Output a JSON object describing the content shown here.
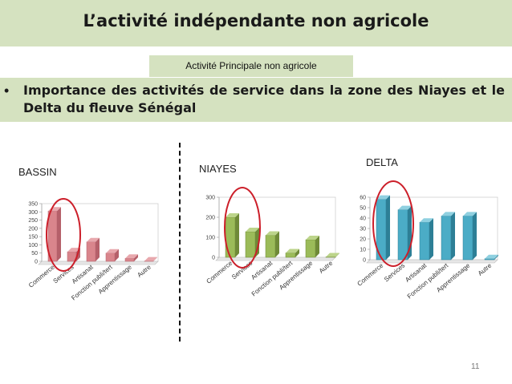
{
  "slide": {
    "title": "L’activité indépendante non agricole",
    "subtitle": "Activité  Principale non agricole",
    "bullet": "Importance des activités de service dans la zone des Niayes et le Delta du fleuve Sénégal",
    "page_number": "11"
  },
  "chart_data": [
    {
      "type": "bar",
      "region": "BASSIN",
      "categories": [
        "Commerce",
        "Services",
        "Artisanat",
        "Fonction publi/tert",
        "Apprentissage",
        "Autre"
      ],
      "values": [
        305,
        58,
        118,
        50,
        18,
        2
      ],
      "yticks": [
        0,
        50,
        100,
        150,
        200,
        250,
        300,
        350
      ],
      "ylim": [
        0,
        350
      ],
      "color": "#d9858c",
      "color_dark": "#b5606a",
      "color_top": "#e8a8ad",
      "highlight": "Commerce and Services circled in red"
    },
    {
      "type": "bar",
      "region": "NIAYES",
      "categories": [
        "Commerce",
        "Services",
        "Artisanat",
        "Fonction publi/tert",
        "Apprentissage",
        "Autre"
      ],
      "values": [
        200,
        128,
        110,
        22,
        88,
        2
      ],
      "yticks": [
        0,
        100,
        200,
        300
      ],
      "ylim": [
        0,
        300
      ],
      "color": "#9bbb59",
      "color_dark": "#6f8a38",
      "color_top": "#bcd48a",
      "highlight": "Commerce and Services circled in red"
    },
    {
      "type": "bar",
      "region": "DELTA",
      "categories": [
        "Commerce",
        "Services",
        "Artisanat",
        "Fonction publi/tert",
        "Apprentissage",
        "Autre"
      ],
      "values": [
        58,
        48,
        36,
        42,
        42,
        1
      ],
      "yticks": [
        0,
        10,
        20,
        30,
        40,
        50,
        60
      ],
      "ylim": [
        0,
        60
      ],
      "color": "#4bacc6",
      "color_dark": "#2d7f96",
      "color_top": "#8fd0e0",
      "highlight": "Commerce and Services circled in red"
    }
  ],
  "colors": {
    "band": "#d5e2c0",
    "circle": "#cc1f2a"
  }
}
